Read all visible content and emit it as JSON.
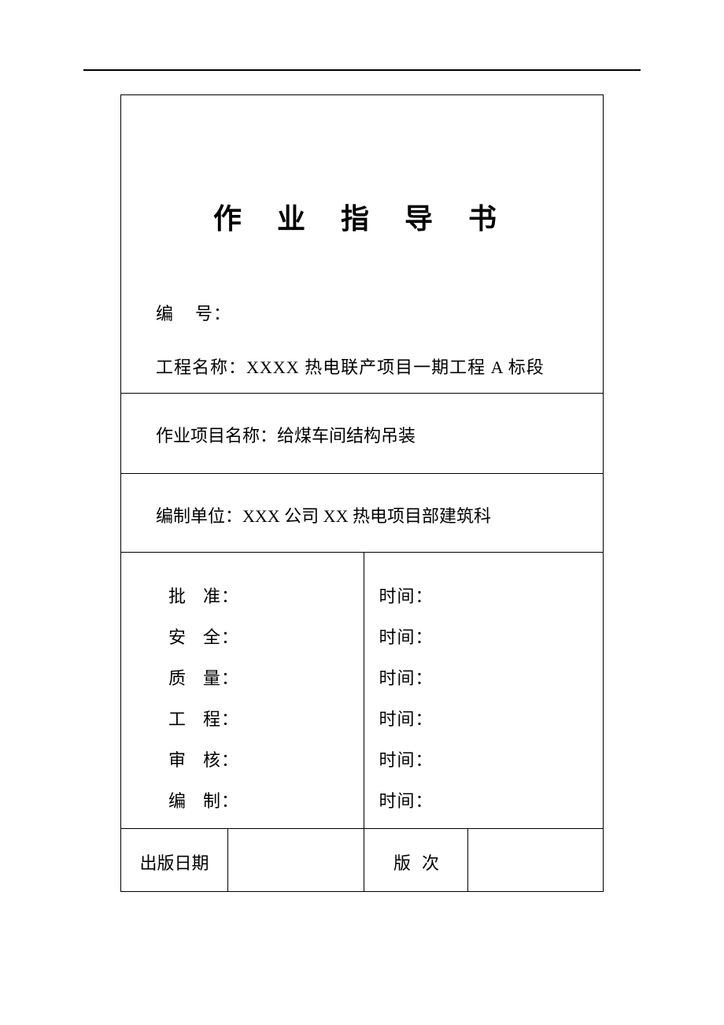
{
  "document": {
    "title": "作 业 指 导 书",
    "fields": {
      "number_label": "编",
      "number_label2": "号：",
      "project_label": "工程名称：",
      "project_value": "XXXX 热电联产项目一期工程 A 标段"
    },
    "work_item": {
      "label": "作业项目名称：",
      "value": "给煤车间结构吊装"
    },
    "unit": {
      "label": "编制单位：",
      "value": "XXX 公司 XX 热电项目部建筑科"
    },
    "approvals": [
      {
        "label": "批",
        "label2": "准：",
        "time_label": "时间："
      },
      {
        "label": "安",
        "label2": "全：",
        "time_label": "时间："
      },
      {
        "label": "质",
        "label2": "量：",
        "time_label": "时间："
      },
      {
        "label": "工",
        "label2": "程：",
        "time_label": "时间："
      },
      {
        "label": "审",
        "label2": "核：",
        "time_label": "时间："
      },
      {
        "label": "编",
        "label2": "制：",
        "time_label": "时间："
      }
    ],
    "footer": {
      "publish_date_label": "出版日期",
      "version_label": "版",
      "version_label2": "次"
    },
    "colors": {
      "text": "#000000",
      "border": "#000000",
      "background": "#ffffff"
    },
    "typography": {
      "title_fontsize": 36,
      "body_fontsize": 22,
      "font_family": "SimSun"
    }
  }
}
